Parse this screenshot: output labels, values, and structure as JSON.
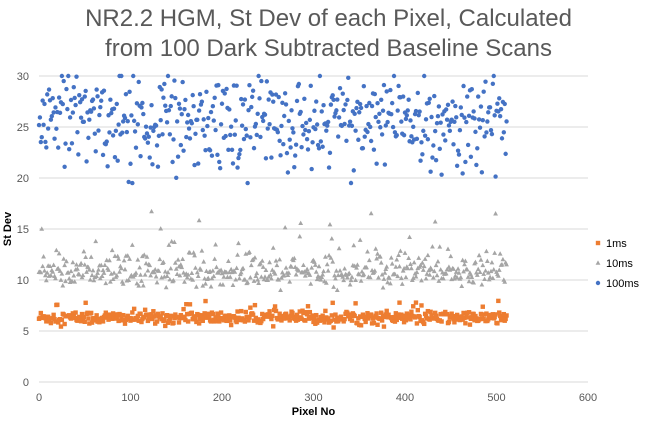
{
  "chart_data": {
    "type": "scatter",
    "title_line1": "NR2.2 HGM, St Dev of each Pixel, Calculated",
    "title_line2": "from 100 Dark Subtracted Baseline Scans",
    "xlabel": "Pixel No",
    "ylabel": "St Dev",
    "xlim": [
      0,
      600
    ],
    "ylim": [
      0,
      30
    ],
    "xticks": [
      "0",
      "100",
      "200",
      "300",
      "400",
      "500",
      "600"
    ],
    "yticks": [
      "0",
      "5",
      "10",
      "15",
      "20",
      "25",
      "30"
    ],
    "gridlines": "horizontal",
    "legend_position": "right",
    "series": [
      {
        "name": "1ms",
        "color": "#ED7D31",
        "marker": "square",
        "pixels": 512,
        "mean": 6.3,
        "spread": 0.55,
        "min": 5.3,
        "max": 8.0
      },
      {
        "name": "10ms",
        "color": "#A5A5A5",
        "marker": "triangle",
        "pixels": 512,
        "mean": 10.8,
        "spread": 1.1,
        "min": 9.0,
        "max": 16.8
      },
      {
        "name": "100ms",
        "color": "#4472C4",
        "marker": "circle",
        "pixels": 512,
        "mean": 25.8,
        "spread": 2.2,
        "min": 19.5,
        "max": 30.0
      }
    ]
  }
}
